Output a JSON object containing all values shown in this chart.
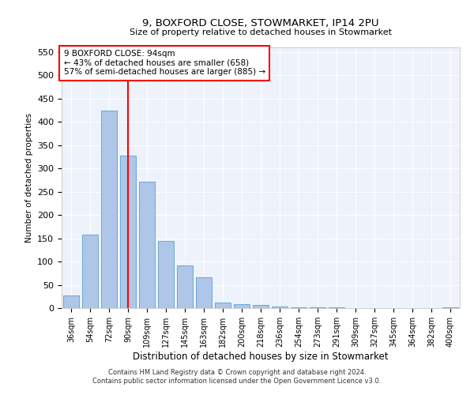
{
  "title1": "9, BOXFORD CLOSE, STOWMARKET, IP14 2PU",
  "title2": "Size of property relative to detached houses in Stowmarket",
  "xlabel": "Distribution of detached houses by size in Stowmarket",
  "ylabel": "Number of detached properties",
  "categories": [
    "36sqm",
    "54sqm",
    "72sqm",
    "90sqm",
    "109sqm",
    "127sqm",
    "145sqm",
    "163sqm",
    "182sqm",
    "200sqm",
    "218sqm",
    "236sqm",
    "254sqm",
    "273sqm",
    "291sqm",
    "309sqm",
    "327sqm",
    "345sqm",
    "364sqm",
    "382sqm",
    "400sqm"
  ],
  "values": [
    28,
    157,
    425,
    327,
    272,
    145,
    91,
    67,
    12,
    9,
    7,
    4,
    2,
    1,
    1,
    0,
    0,
    0,
    0,
    0,
    2
  ],
  "bar_color": "#aec6e8",
  "bar_edge_color": "#5a9fd4",
  "red_line_index": 3,
  "annotation_line1": "9 BOXFORD CLOSE: 94sqm",
  "annotation_line2": "← 43% of detached houses are smaller (658)",
  "annotation_line3": "57% of semi-detached houses are larger (885) →",
  "ylim": [
    0,
    560
  ],
  "yticks": [
    0,
    50,
    100,
    150,
    200,
    250,
    300,
    350,
    400,
    450,
    500,
    550
  ],
  "bg_color": "#eef2fa",
  "grid_color": "#ffffff",
  "footnote1": "Contains HM Land Registry data © Crown copyright and database right 2024.",
  "footnote2": "Contains public sector information licensed under the Open Government Licence v3.0."
}
